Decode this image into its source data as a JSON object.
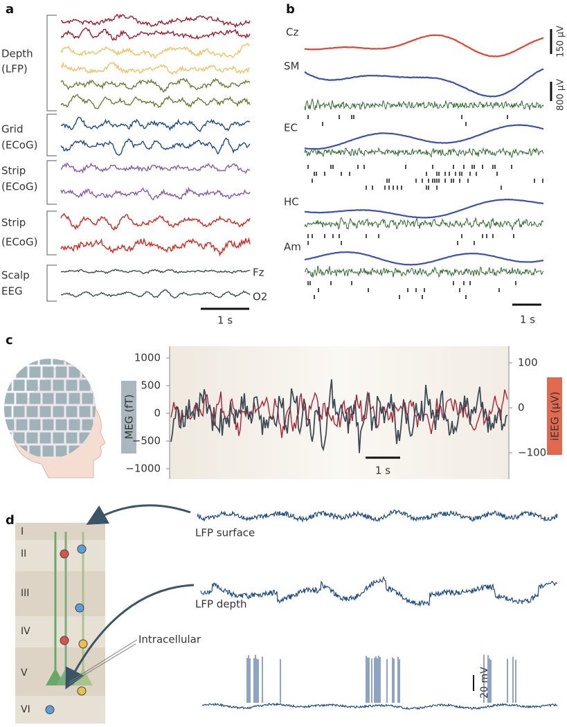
{
  "panel_a": {
    "label": "a",
    "groups": [
      {
        "lines": [
          "Depth",
          "(LFP)"
        ]
      },
      {
        "lines": [
          "Grid",
          "(ECoG)"
        ]
      },
      {
        "lines": [
          "Strip",
          "(ECoG)"
        ]
      },
      {
        "lines": [
          "Strip",
          "(ECoG)"
        ]
      },
      {
        "lines": [
          "Scalp",
          "EEG"
        ]
      }
    ],
    "channels": [
      "Fz",
      "O2"
    ],
    "scale": "1 s"
  },
  "panel_b": {
    "label": "b",
    "regions": [
      "Cz",
      "SM",
      "EC",
      "HC",
      "Am"
    ],
    "scale_bars": [
      "150 µV",
      "800 µV"
    ],
    "time_scale": "1 s"
  },
  "panel_c": {
    "label": "c",
    "left_axis": {
      "title": "MEG (fT)",
      "ticks": [
        "1000",
        "500",
        "0",
        "−500",
        "−1000"
      ]
    },
    "right_axis": {
      "title": "iEEG (µV)",
      "ticks": [
        "100",
        "0",
        "−100"
      ]
    },
    "scale": "1 s"
  },
  "panel_d": {
    "label": "d",
    "layers": [
      "I",
      "II",
      "III",
      "IV",
      "V",
      "VI"
    ],
    "traces": [
      "LFP surface",
      "LFP depth"
    ],
    "electrode": "Intracellular",
    "scale": "20 mV"
  }
}
